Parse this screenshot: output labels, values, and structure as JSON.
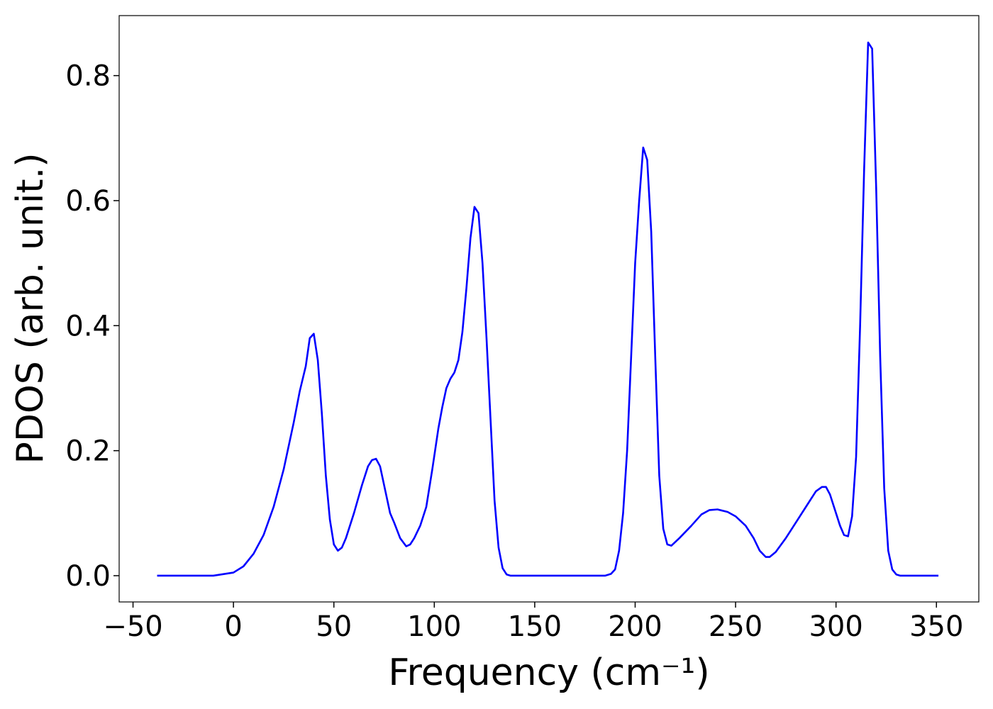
{
  "chart_data": {
    "type": "line",
    "xlabel": "Frequency (cm⁻¹)",
    "ylabel": "PDOS (arb. unit.)",
    "x": [
      -38,
      -10,
      0,
      5,
      10,
      15,
      20,
      25,
      30,
      33,
      36,
      38,
      40,
      42,
      44,
      46,
      48,
      50,
      52,
      54,
      56,
      60,
      64,
      67,
      69,
      71,
      73,
      76,
      78,
      80,
      83,
      86,
      88,
      90,
      93,
      96,
      99,
      102,
      104,
      106,
      108,
      110,
      112,
      114,
      116,
      118,
      120,
      122,
      124,
      126,
      128,
      130,
      132,
      134,
      136,
      138,
      185,
      188,
      190,
      192,
      194,
      196,
      198,
      200,
      202,
      204,
      206,
      208,
      210,
      212,
      214,
      216,
      218,
      222,
      228,
      233,
      237,
      241,
      246,
      250,
      255,
      259,
      262,
      265,
      267,
      270,
      275,
      280,
      285,
      290,
      293,
      295,
      297,
      300,
      302,
      304,
      306,
      308,
      310,
      312,
      314,
      316,
      318,
      320,
      322,
      324,
      326,
      328,
      330,
      332,
      351
    ],
    "values": [
      0,
      0,
      0.005,
      0.015,
      0.035,
      0.065,
      0.11,
      0.17,
      0.245,
      0.295,
      0.335,
      0.38,
      0.387,
      0.345,
      0.26,
      0.16,
      0.09,
      0.05,
      0.04,
      0.045,
      0.06,
      0.1,
      0.145,
      0.175,
      0.185,
      0.187,
      0.175,
      0.13,
      0.1,
      0.085,
      0.06,
      0.047,
      0.05,
      0.06,
      0.08,
      0.11,
      0.17,
      0.235,
      0.27,
      0.3,
      0.315,
      0.325,
      0.345,
      0.39,
      0.46,
      0.54,
      0.59,
      0.58,
      0.5,
      0.38,
      0.25,
      0.12,
      0.045,
      0.012,
      0.002,
      0,
      0,
      0.003,
      0.01,
      0.04,
      0.1,
      0.2,
      0.35,
      0.5,
      0.6,
      0.685,
      0.665,
      0.55,
      0.35,
      0.16,
      0.075,
      0.05,
      0.048,
      0.06,
      0.08,
      0.098,
      0.105,
      0.106,
      0.102,
      0.095,
      0.08,
      0.06,
      0.04,
      0.03,
      0.03,
      0.038,
      0.06,
      0.085,
      0.11,
      0.135,
      0.142,
      0.142,
      0.13,
      0.1,
      0.08,
      0.065,
      0.063,
      0.095,
      0.19,
      0.4,
      0.65,
      0.853,
      0.843,
      0.62,
      0.35,
      0.14,
      0.04,
      0.01,
      0.002,
      0,
      0
    ],
    "color": "#0000ff",
    "xlim": [
      -56.9,
      371.1
    ],
    "ylim": [
      -0.042,
      0.896
    ],
    "xticks": [
      {
        "value": -50,
        "label": "−50"
      },
      0,
      50,
      100,
      150,
      200,
      250,
      300,
      350
    ],
    "yticks": [
      {
        "value": 0,
        "label": "0.0"
      },
      0.2,
      0.4,
      0.6,
      0.8
    ]
  }
}
